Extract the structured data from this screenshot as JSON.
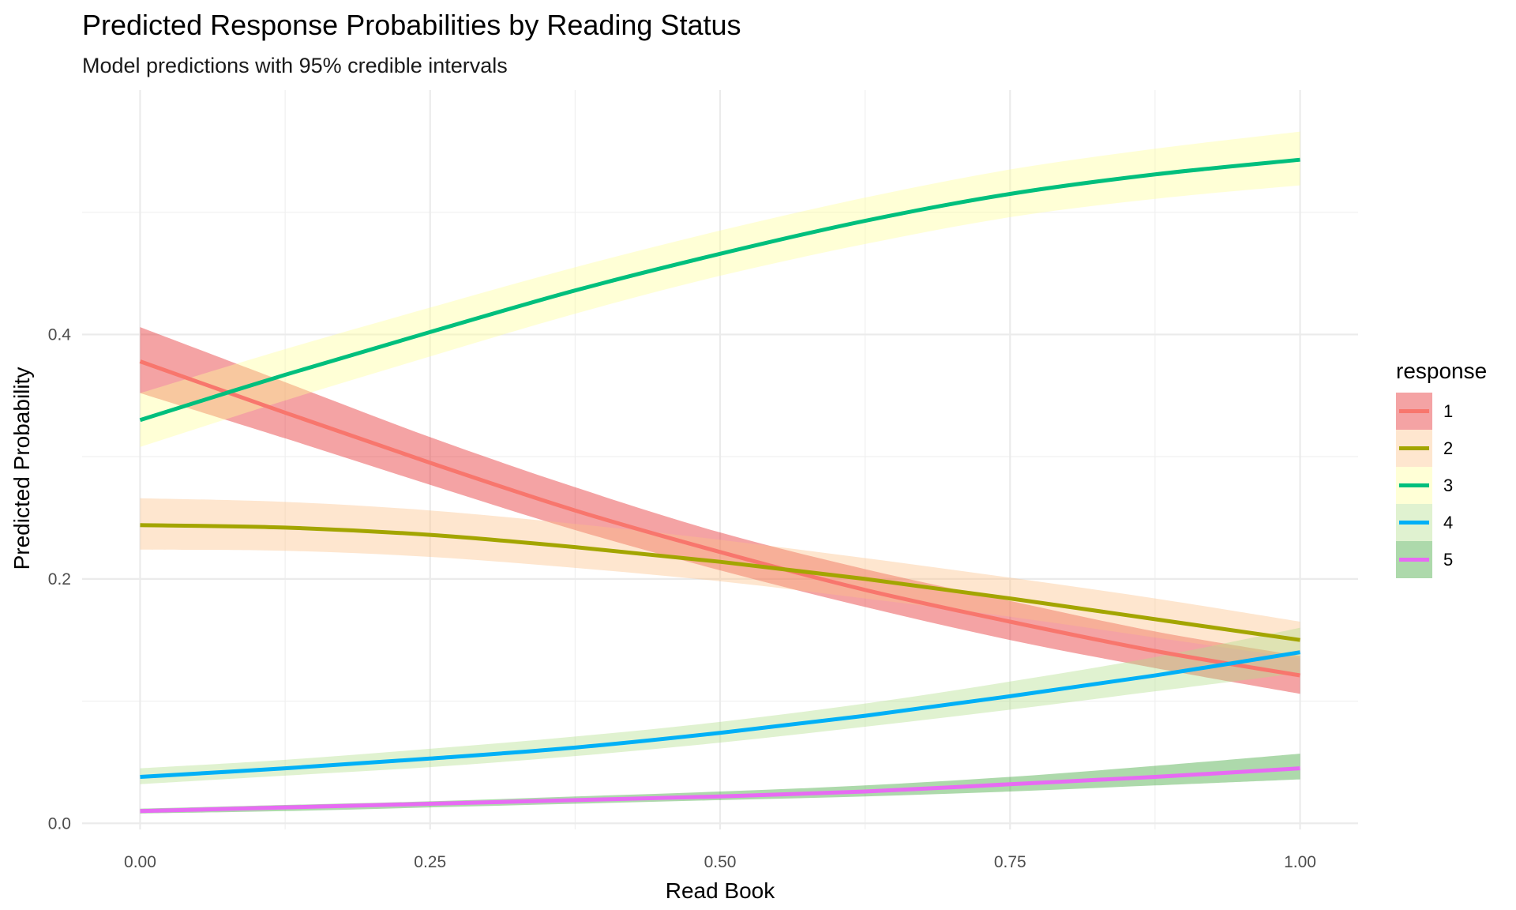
{
  "chart_data": {
    "type": "line",
    "title": "Predicted Response Probabilities by Reading Status",
    "subtitle": "Model predictions with 95% credible intervals",
    "xlabel": "Read Book",
    "ylabel": "Predicted Probability",
    "xlim": [
      -0.05,
      1.05
    ],
    "ylim": [
      -0.005,
      0.6
    ],
    "x_ticks": [
      0.0,
      0.25,
      0.5,
      0.75,
      1.0
    ],
    "x_tick_labels": [
      "0.00",
      "0.25",
      "0.50",
      "0.75",
      "1.00"
    ],
    "y_ticks": [
      0.0,
      0.2,
      0.4
    ],
    "y_tick_labels": [
      "0.0",
      "0.2",
      "0.4"
    ],
    "grid": true,
    "legend": {
      "title": "response",
      "position": "right"
    },
    "x": [
      0,
      0.125,
      0.25,
      0.375,
      0.5,
      0.625,
      0.75,
      0.875,
      1.0
    ],
    "series": [
      {
        "name": "1",
        "line_color": "#F8766D",
        "ribbon_color": "#E41A1C",
        "values": [
          0.378,
          0.336,
          0.295,
          0.256,
          0.222,
          0.191,
          0.165,
          0.141,
          0.121
        ],
        "lower": [
          0.352,
          0.315,
          0.277,
          0.24,
          0.207,
          0.177,
          0.15,
          0.127,
          0.106
        ],
        "upper": [
          0.406,
          0.361,
          0.316,
          0.275,
          0.238,
          0.208,
          0.182,
          0.157,
          0.137
        ]
      },
      {
        "name": "2",
        "line_color": "#A3A500",
        "ribbon_color": "#FDC086",
        "values": [
          0.244,
          0.242,
          0.236,
          0.226,
          0.214,
          0.2,
          0.184,
          0.167,
          0.15
        ],
        "lower": [
          0.224,
          0.223,
          0.218,
          0.209,
          0.198,
          0.184,
          0.169,
          0.152,
          0.135
        ],
        "upper": [
          0.266,
          0.263,
          0.256,
          0.245,
          0.232,
          0.217,
          0.201,
          0.184,
          0.165
        ]
      },
      {
        "name": "3",
        "line_color": "#00BF7D",
        "ribbon_color": "#FFFF99",
        "values": [
          0.33,
          0.367,
          0.402,
          0.436,
          0.466,
          0.493,
          0.515,
          0.531,
          0.543
        ],
        "lower": [
          0.308,
          0.346,
          0.382,
          0.417,
          0.448,
          0.474,
          0.496,
          0.511,
          0.522
        ],
        "upper": [
          0.352,
          0.388,
          0.422,
          0.455,
          0.485,
          0.512,
          0.535,
          0.552,
          0.566
        ]
      },
      {
        "name": "4",
        "line_color": "#00B0F6",
        "ribbon_color": "#B2DF8A",
        "values": [
          0.038,
          0.045,
          0.053,
          0.062,
          0.074,
          0.088,
          0.104,
          0.121,
          0.14
        ],
        "lower": [
          0.032,
          0.039,
          0.046,
          0.055,
          0.066,
          0.079,
          0.093,
          0.108,
          0.123
        ],
        "upper": [
          0.045,
          0.052,
          0.061,
          0.071,
          0.083,
          0.098,
          0.116,
          0.136,
          0.16
        ]
      },
      {
        "name": "5",
        "line_color": "#E76BF3",
        "ribbon_color": "#33A02C",
        "values": [
          0.01,
          0.013,
          0.016,
          0.019,
          0.022,
          0.026,
          0.032,
          0.038,
          0.045
        ],
        "lower": [
          0.008,
          0.01,
          0.013,
          0.016,
          0.019,
          0.022,
          0.026,
          0.031,
          0.036
        ],
        "upper": [
          0.012,
          0.015,
          0.018,
          0.022,
          0.026,
          0.031,
          0.038,
          0.047,
          0.057
        ]
      }
    ]
  }
}
